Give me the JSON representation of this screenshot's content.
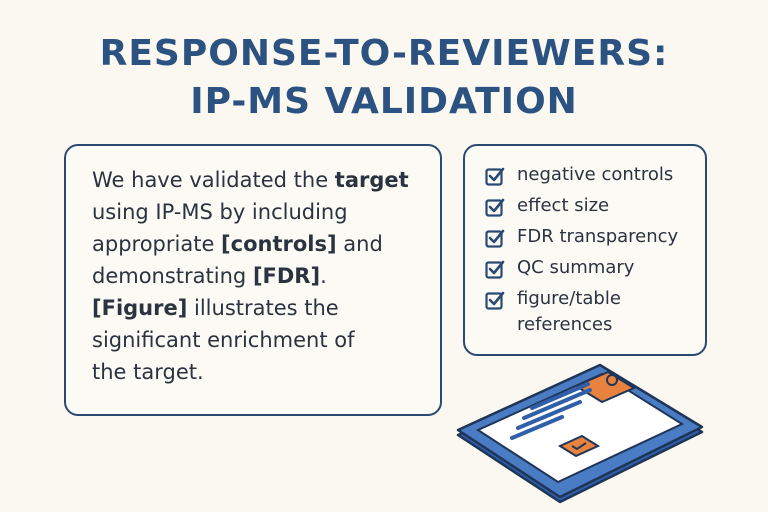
{
  "title": {
    "lines": [
      "RESPONSE-TO-REVIEWERS:",
      "IP-MS VALIDATION"
    ]
  },
  "statement": {
    "lines": [
      [
        {
          "text": "We have validated the ",
          "bold": false
        },
        {
          "text": "target",
          "bold": true
        }
      ],
      [
        {
          "text": "using IP-MS by including",
          "bold": false
        }
      ],
      [
        {
          "text": "appropriate ",
          "bold": false
        },
        {
          "text": "[controls]",
          "bold": true
        },
        {
          "text": " and",
          "bold": false
        }
      ],
      [
        {
          "text": "demonstrating ",
          "bold": false
        },
        {
          "text": "[FDR]",
          "bold": true
        },
        {
          "text": ".",
          "bold": false
        }
      ],
      [
        {
          "text": "[Figure]",
          "bold": true
        },
        {
          "text": " illustrates the",
          "bold": false
        }
      ],
      [
        {
          "text": "significant enrichment of",
          "bold": false
        }
      ],
      [
        {
          "text": "the target.",
          "bold": false
        }
      ]
    ]
  },
  "checklist": {
    "items": [
      "negative controls",
      "effect size",
      "FDR transparency",
      "QC summary",
      "figure/table references"
    ]
  }
}
